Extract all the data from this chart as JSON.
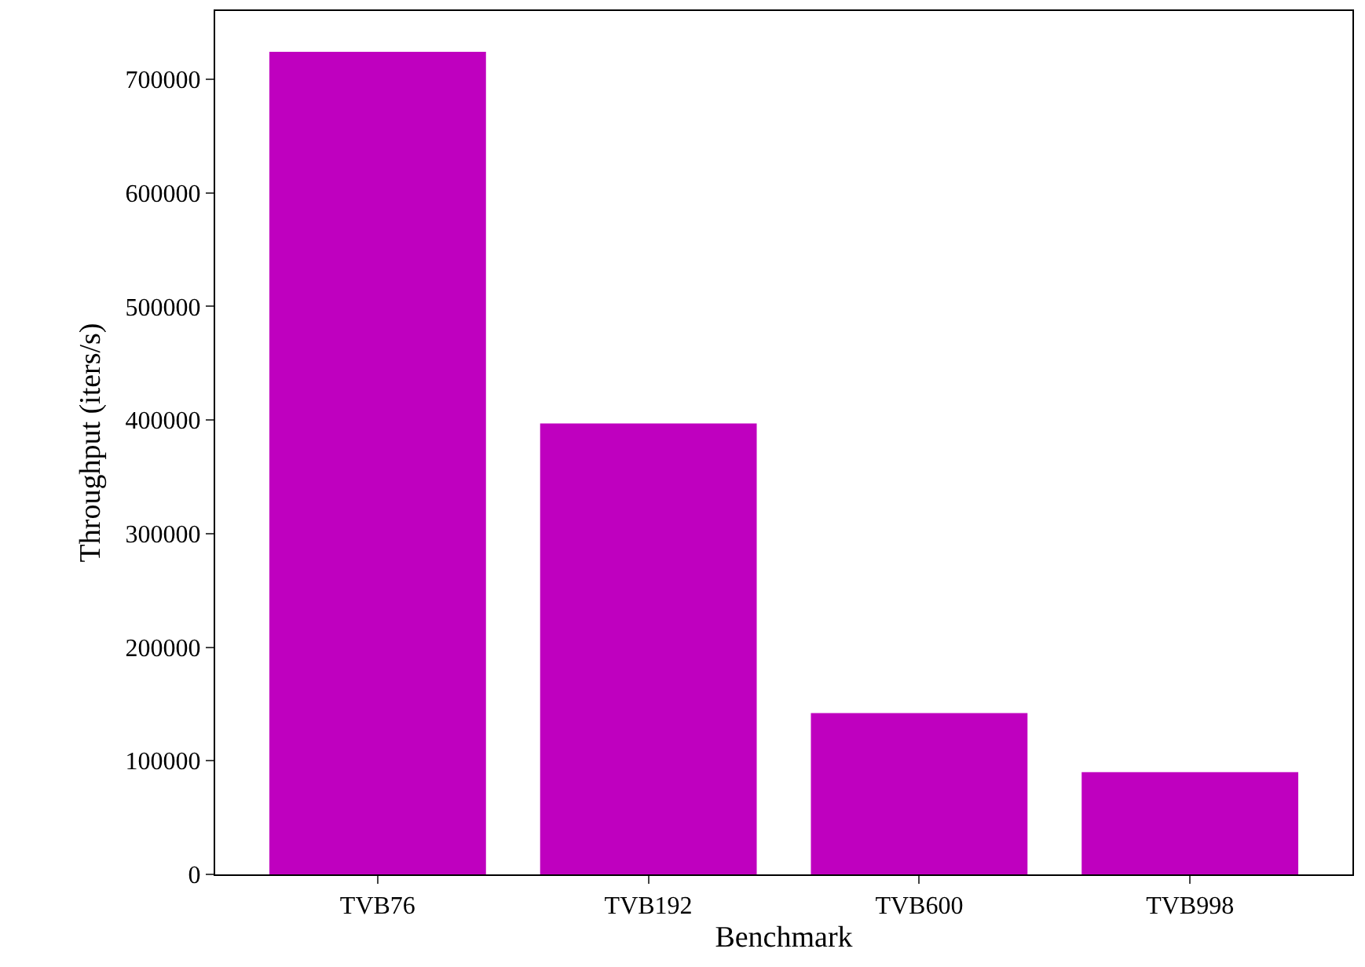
{
  "chart_data": {
    "type": "bar",
    "xlabel": "Benchmark",
    "ylabel": "Throughput (iters/s)",
    "categories": [
      "TVB76",
      "TVB192",
      "TVB600",
      "TVB998"
    ],
    "values": [
      724000,
      397000,
      142000,
      90000
    ],
    "color": "#bf00bf",
    "ylim": [
      0,
      760000
    ],
    "yticks": [
      0,
      100000,
      200000,
      300000,
      400000,
      500000,
      600000,
      700000
    ],
    "grid": false
  }
}
